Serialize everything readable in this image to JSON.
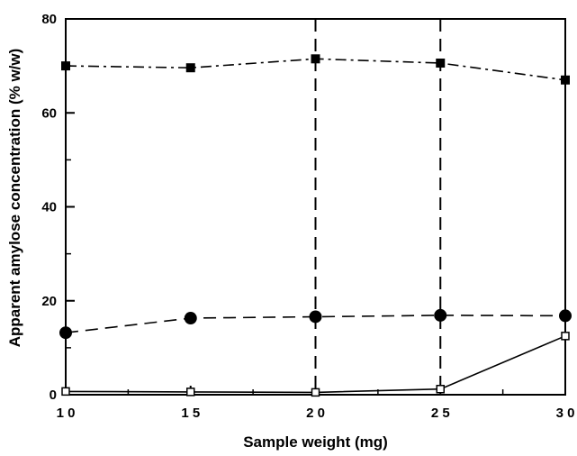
{
  "chart_data": {
    "type": "line",
    "xlabel": "Sample weight (mg)",
    "ylabel": "Apparent amylose concentration (% w/w)",
    "xlim": [
      10,
      30
    ],
    "ylim": [
      0,
      80
    ],
    "x_ticks": [
      10,
      15,
      20,
      25,
      30
    ],
    "x_tick_labels": [
      "1 0",
      "1 5",
      "2 0",
      "2 5",
      "3 0"
    ],
    "y_ticks": [
      0,
      20,
      40,
      60,
      80
    ],
    "y_tick_labels": [
      "0",
      "20",
      "40",
      "60",
      "80"
    ],
    "grid": false,
    "legend": "none",
    "x": [
      10,
      15,
      20,
      25,
      30
    ],
    "series": [
      {
        "marker": "filled-square",
        "line_style": "dash-dot",
        "values": [
          70.0,
          69.6,
          71.5,
          70.6,
          67.0
        ]
      },
      {
        "marker": "filled-circle",
        "line_style": "dashed",
        "values": [
          13.2,
          16.3,
          16.6,
          16.9,
          16.8
        ]
      },
      {
        "marker": "open-square",
        "line_style": "solid",
        "values": [
          0.7,
          0.6,
          0.5,
          1.2,
          12.5
        ]
      }
    ],
    "reference_lines": [
      {
        "orientation": "vertical",
        "x": 20,
        "line_style": "dashed"
      },
      {
        "orientation": "vertical",
        "x": 25,
        "line_style": "dashed"
      }
    ],
    "colors": {
      "ink": "#000000",
      "background": "#ffffff"
    }
  }
}
